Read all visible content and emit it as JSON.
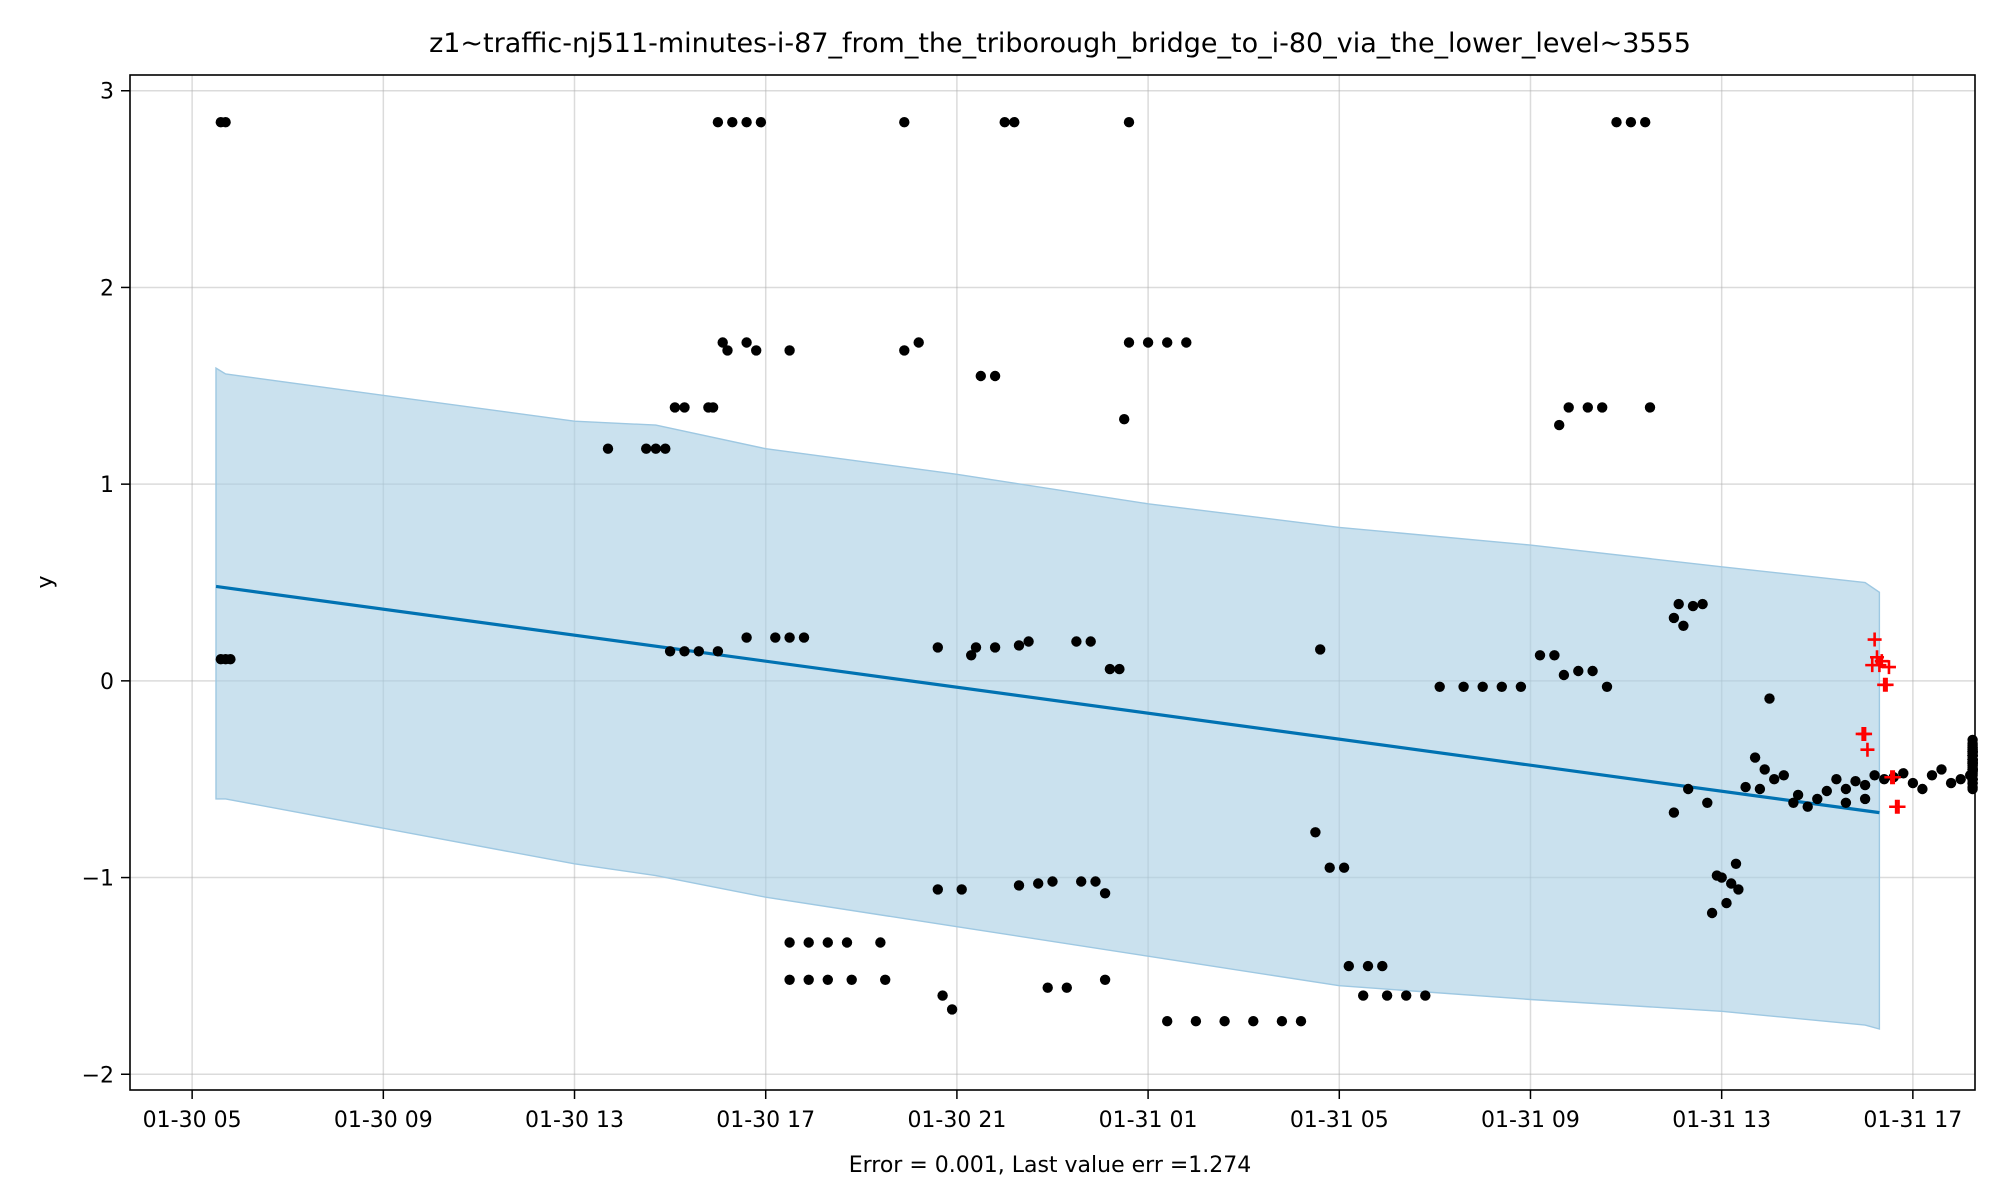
{
  "chart_data": {
    "type": "scatter",
    "title": "z1~traffic-nj511-minutes-i-87_from_the_triborough_bridge_to_i-80_via_the_lower_level~3555",
    "xlabel": "Error = 0.001, Last value err =1.274",
    "ylabel": "y",
    "x_ticks": [
      "01-30 05",
      "01-30 09",
      "01-30 13",
      "01-30 17",
      "01-30 21",
      "01-31 01",
      "01-31 05",
      "01-31 09",
      "01-31 13",
      "01-31 17"
    ],
    "x_tick_hours": [
      0,
      4,
      8,
      12,
      16,
      20,
      24,
      28,
      32,
      36
    ],
    "y_ticks": [
      -2,
      -1,
      0,
      1,
      2,
      3
    ],
    "xlim_hours": [
      -1.3,
      37.3
    ],
    "ylim": [
      -2.08,
      3.08
    ],
    "grid": true,
    "colors": {
      "trend_line": "#0072b2",
      "band_fill": "#a6cde2",
      "observed_points": "#000000",
      "forecast_points": "#ff0000"
    },
    "x_unit_note": "x values are hours after 01-30 05",
    "trend_line": {
      "x": [
        0.5,
        35.3
      ],
      "y": [
        0.48,
        -0.67
      ]
    },
    "upper_band": {
      "x": [
        0.5,
        0.7,
        8,
        9.7,
        12,
        16,
        20,
        24,
        28,
        32,
        35,
        35.3
      ],
      "y": [
        1.59,
        1.56,
        1.32,
        1.3,
        1.18,
        1.05,
        0.9,
        0.78,
        0.69,
        0.58,
        0.5,
        0.45
      ]
    },
    "lower_band": {
      "x": [
        0.5,
        0.7,
        8,
        9.7,
        12,
        16,
        20,
        24,
        28,
        32,
        35,
        35.3
      ],
      "y": [
        -0.6,
        -0.6,
        -0.93,
        -0.99,
        -1.1,
        -1.25,
        -1.4,
        -1.55,
        -1.62,
        -1.68,
        -1.75,
        -1.77
      ]
    },
    "observed": [
      {
        "x": 0.6,
        "y": 2.84
      },
      {
        "x": 0.7,
        "y": 2.84
      },
      {
        "x": 0.6,
        "y": 0.11
      },
      {
        "x": 0.7,
        "y": 0.11
      },
      {
        "x": 0.8,
        "y": 0.11
      },
      {
        "x": 8.7,
        "y": 1.18
      },
      {
        "x": 9.5,
        "y": 1.18
      },
      {
        "x": 9.7,
        "y": 1.18
      },
      {
        "x": 9.9,
        "y": 1.18
      },
      {
        "x": 10.1,
        "y": 1.39
      },
      {
        "x": 10.3,
        "y": 1.39
      },
      {
        "x": 10.8,
        "y": 1.39
      },
      {
        "x": 10.9,
        "y": 1.39
      },
      {
        "x": 10.0,
        "y": 0.15
      },
      {
        "x": 10.3,
        "y": 0.15
      },
      {
        "x": 10.6,
        "y": 0.15
      },
      {
        "x": 11.0,
        "y": 0.15
      },
      {
        "x": 11.0,
        "y": 2.84
      },
      {
        "x": 11.3,
        "y": 2.84
      },
      {
        "x": 11.6,
        "y": 2.84
      },
      {
        "x": 11.9,
        "y": 2.84
      },
      {
        "x": 11.1,
        "y": 1.72
      },
      {
        "x": 11.2,
        "y": 1.68
      },
      {
        "x": 11.6,
        "y": 1.72
      },
      {
        "x": 11.8,
        "y": 1.68
      },
      {
        "x": 12.5,
        "y": 1.68
      },
      {
        "x": 12.2,
        "y": 0.22
      },
      {
        "x": 12.5,
        "y": 0.22
      },
      {
        "x": 12.8,
        "y": 0.22
      },
      {
        "x": 11.6,
        "y": 0.22
      },
      {
        "x": 12.5,
        "y": -1.33
      },
      {
        "x": 12.9,
        "y": -1.33
      },
      {
        "x": 12.5,
        "y": -1.52
      },
      {
        "x": 12.9,
        "y": -1.52
      },
      {
        "x": 13.3,
        "y": -1.33
      },
      {
        "x": 13.7,
        "y": -1.33
      },
      {
        "x": 13.3,
        "y": -1.52
      },
      {
        "x": 13.8,
        "y": -1.52
      },
      {
        "x": 14.4,
        "y": -1.33
      },
      {
        "x": 14.5,
        "y": -1.52
      },
      {
        "x": 14.9,
        "y": 2.84
      },
      {
        "x": 14.9,
        "y": 1.68
      },
      {
        "x": 15.2,
        "y": 1.72
      },
      {
        "x": 15.6,
        "y": 0.17
      },
      {
        "x": 15.6,
        "y": -1.06
      },
      {
        "x": 15.7,
        "y": -1.6
      },
      {
        "x": 15.9,
        "y": -1.67
      },
      {
        "x": 16.1,
        "y": -1.06
      },
      {
        "x": 16.3,
        "y": 0.13
      },
      {
        "x": 16.5,
        "y": 1.55
      },
      {
        "x": 16.8,
        "y": 1.55
      },
      {
        "x": 16.4,
        "y": 0.17
      },
      {
        "x": 16.8,
        "y": 0.17
      },
      {
        "x": 17.0,
        "y": 2.84
      },
      {
        "x": 17.2,
        "y": 2.84
      },
      {
        "x": 17.3,
        "y": 0.18
      },
      {
        "x": 17.5,
        "y": 0.2
      },
      {
        "x": 17.3,
        "y": -1.04
      },
      {
        "x": 17.7,
        "y": -1.03
      },
      {
        "x": 18.0,
        "y": -1.02
      },
      {
        "x": 17.9,
        "y": -1.56
      },
      {
        "x": 18.3,
        "y": -1.56
      },
      {
        "x": 18.5,
        "y": 0.2
      },
      {
        "x": 18.8,
        "y": 0.2
      },
      {
        "x": 18.6,
        "y": -1.02
      },
      {
        "x": 18.9,
        "y": -1.02
      },
      {
        "x": 19.1,
        "y": -1.08
      },
      {
        "x": 19.1,
        "y": -1.52
      },
      {
        "x": 19.2,
        "y": 0.06
      },
      {
        "x": 19.4,
        "y": 0.06
      },
      {
        "x": 19.6,
        "y": 2.84
      },
      {
        "x": 19.5,
        "y": 1.33
      },
      {
        "x": 19.6,
        "y": 1.72
      },
      {
        "x": 20.0,
        "y": 1.72
      },
      {
        "x": 20.4,
        "y": 1.72
      },
      {
        "x": 20.8,
        "y": 1.72
      },
      {
        "x": 20.4,
        "y": -1.73
      },
      {
        "x": 21.0,
        "y": -1.73
      },
      {
        "x": 21.6,
        "y": -1.73
      },
      {
        "x": 22.2,
        "y": -1.73
      },
      {
        "x": 22.8,
        "y": -1.73
      },
      {
        "x": 23.2,
        "y": -1.73
      },
      {
        "x": 23.5,
        "y": -0.77
      },
      {
        "x": 23.6,
        "y": 0.16
      },
      {
        "x": 23.8,
        "y": -0.95
      },
      {
        "x": 24.1,
        "y": -0.95
      },
      {
        "x": 24.2,
        "y": -1.45
      },
      {
        "x": 24.6,
        "y": -1.45
      },
      {
        "x": 24.9,
        "y": -1.45
      },
      {
        "x": 24.5,
        "y": -1.6
      },
      {
        "x": 25.0,
        "y": -1.6
      },
      {
        "x": 25.4,
        "y": -1.6
      },
      {
        "x": 25.8,
        "y": -1.6
      },
      {
        "x": 26.1,
        "y": -0.03
      },
      {
        "x": 26.6,
        "y": -0.03
      },
      {
        "x": 27.0,
        "y": -0.03
      },
      {
        "x": 27.4,
        "y": -0.03
      },
      {
        "x": 27.8,
        "y": -0.03
      },
      {
        "x": 28.2,
        "y": 0.13
      },
      {
        "x": 28.5,
        "y": 0.13
      },
      {
        "x": 28.7,
        "y": 0.03
      },
      {
        "x": 29.0,
        "y": 0.05
      },
      {
        "x": 29.3,
        "y": 0.05
      },
      {
        "x": 29.6,
        "y": -0.03
      },
      {
        "x": 28.6,
        "y": 1.3
      },
      {
        "x": 28.8,
        "y": 1.39
      },
      {
        "x": 29.2,
        "y": 1.39
      },
      {
        "x": 29.5,
        "y": 1.39
      },
      {
        "x": 30.5,
        "y": 1.39
      },
      {
        "x": 29.8,
        "y": 2.84
      },
      {
        "x": 30.1,
        "y": 2.84
      },
      {
        "x": 30.4,
        "y": 2.84
      },
      {
        "x": 31.0,
        "y": 0.32
      },
      {
        "x": 31.1,
        "y": 0.39
      },
      {
        "x": 31.2,
        "y": 0.28
      },
      {
        "x": 31.4,
        "y": 0.38
      },
      {
        "x": 31.6,
        "y": 0.39
      },
      {
        "x": 31.0,
        "y": -0.67
      },
      {
        "x": 31.3,
        "y": -0.55
      },
      {
        "x": 31.7,
        "y": -0.62
      },
      {
        "x": 31.8,
        "y": -1.18
      },
      {
        "x": 31.9,
        "y": -0.99
      },
      {
        "x": 32.0,
        "y": -1.0
      },
      {
        "x": 32.1,
        "y": -1.13
      },
      {
        "x": 32.2,
        "y": -1.03
      },
      {
        "x": 32.3,
        "y": -0.93
      },
      {
        "x": 32.35,
        "y": -1.06
      },
      {
        "x": 32.5,
        "y": -0.54
      },
      {
        "x": 32.7,
        "y": -0.39
      },
      {
        "x": 32.8,
        "y": -0.55
      },
      {
        "x": 33.0,
        "y": -0.09
      },
      {
        "x": 32.9,
        "y": -0.45
      },
      {
        "x": 33.1,
        "y": -0.5
      },
      {
        "x": 33.3,
        "y": -0.48
      },
      {
        "x": 33.5,
        "y": -0.62
      },
      {
        "x": 33.6,
        "y": -0.58
      },
      {
        "x": 33.8,
        "y": -0.64
      },
      {
        "x": 34.0,
        "y": -0.6
      },
      {
        "x": 34.2,
        "y": -0.56
      },
      {
        "x": 34.4,
        "y": -0.5
      },
      {
        "x": 34.6,
        "y": -0.55
      },
      {
        "x": 34.8,
        "y": -0.51
      },
      {
        "x": 35.0,
        "y": -0.53
      },
      {
        "x": 35.2,
        "y": -0.48
      },
      {
        "x": 35.4,
        "y": -0.5
      },
      {
        "x": 34.6,
        "y": -0.62
      },
      {
        "x": 35.0,
        "y": -0.6
      },
      {
        "x": 35.6,
        "y": -0.49
      },
      {
        "x": 35.8,
        "y": -0.47
      },
      {
        "x": 36.0,
        "y": -0.52
      },
      {
        "x": 36.2,
        "y": -0.55
      },
      {
        "x": 36.4,
        "y": -0.48
      },
      {
        "x": 36.6,
        "y": -0.45
      },
      {
        "x": 36.8,
        "y": -0.52
      },
      {
        "x": 37.0,
        "y": -0.5
      },
      {
        "x": 37.2,
        "y": -0.48
      },
      {
        "x": 37.4,
        "y": -0.45
      },
      {
        "x": 37.6,
        "y": -0.5
      },
      {
        "x": 37.8,
        "y": -0.52
      },
      {
        "x": 38.0,
        "y": -0.46
      },
      {
        "x": 38.2,
        "y": -0.5
      },
      {
        "x": 38.4,
        "y": -0.54
      },
      {
        "x": 38.6,
        "y": -0.5
      },
      {
        "x": 38.8,
        "y": -0.47
      },
      {
        "x": 39.0,
        "y": -0.52
      },
      {
        "x": 39.2,
        "y": -0.55
      },
      {
        "x": 39.4,
        "y": -0.5
      },
      {
        "x": 39.6,
        "y": -0.46
      },
      {
        "x": 39.8,
        "y": -0.43
      },
      {
        "x": 40.0,
        "y": -0.4
      },
      {
        "x": 40.2,
        "y": -0.45
      },
      {
        "x": 40.4,
        "y": -0.42
      },
      {
        "x": 40.6,
        "y": -0.38
      },
      {
        "x": 40.8,
        "y": -0.42
      },
      {
        "x": 41.0,
        "y": -0.45
      },
      {
        "x": 41.2,
        "y": -0.4
      },
      {
        "x": 41.4,
        "y": -0.36
      },
      {
        "x": 41.6,
        "y": -0.34
      },
      {
        "x": 41.8,
        "y": -0.33
      },
      {
        "x": 42.0,
        "y": -0.35
      },
      {
        "x": 42.2,
        "y": -0.45
      },
      {
        "x": 42.4,
        "y": -0.43
      },
      {
        "x": 42.6,
        "y": -0.41
      },
      {
        "x": 42.8,
        "y": -0.44
      },
      {
        "x": 43.0,
        "y": -0.4
      },
      {
        "x": 43.2,
        "y": -0.42
      },
      {
        "x": 43.4,
        "y": -0.48
      },
      {
        "x": 43.6,
        "y": -0.45
      },
      {
        "x": 43.8,
        "y": -0.41
      },
      {
        "x": 44.0,
        "y": -0.38
      },
      {
        "x": 44.2,
        "y": -0.4
      },
      {
        "x": 44.4,
        "y": -0.36
      },
      {
        "x": 44.6,
        "y": -0.34
      },
      {
        "x": 44.8,
        "y": -0.38
      },
      {
        "x": 45.0,
        "y": -0.37
      },
      {
        "x": 45.2,
        "y": -0.32
      },
      {
        "x": 45.4,
        "y": -0.3
      },
      {
        "x": 45.6,
        "y": -0.36
      },
      {
        "x": 45.8,
        "y": -0.4
      },
      {
        "x": 46.0,
        "y": -0.42
      },
      {
        "x": 46.2,
        "y": -0.4
      },
      {
        "x": 46.4,
        "y": -0.38
      },
      {
        "x": 46.6,
        "y": -0.36
      },
      {
        "x": 46.8,
        "y": -0.35
      },
      {
        "x": 47.0,
        "y": -0.38
      },
      {
        "x": 47.2,
        "y": -0.4
      },
      {
        "x": 47.4,
        "y": -0.36
      }
    ],
    "forecast": [
      {
        "x": 34.95,
        "y": -0.27
      },
      {
        "x": 35.0,
        "y": -0.27
      },
      {
        "x": 35.05,
        "y": -0.35
      },
      {
        "x": 35.15,
        "y": 0.08
      },
      {
        "x": 35.2,
        "y": 0.21
      },
      {
        "x": 35.25,
        "y": 0.12
      },
      {
        "x": 35.3,
        "y": 0.08
      },
      {
        "x": 35.35,
        "y": 0.1
      },
      {
        "x": 35.4,
        "y": -0.02
      },
      {
        "x": 35.45,
        "y": -0.02
      },
      {
        "x": 35.5,
        "y": 0.07
      },
      {
        "x": 35.55,
        "y": -0.49
      },
      {
        "x": 35.6,
        "y": -0.49
      },
      {
        "x": 35.65,
        "y": -0.64
      },
      {
        "x": 35.7,
        "y": -0.64
      }
    ]
  }
}
